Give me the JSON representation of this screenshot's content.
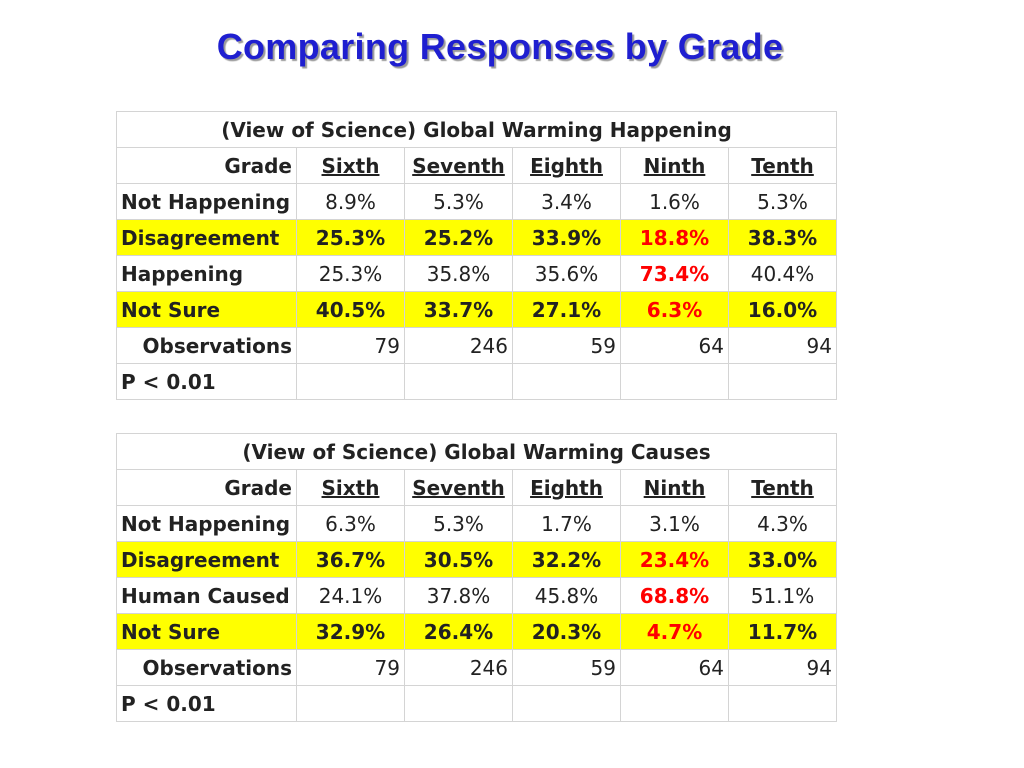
{
  "title": "Comparing Responses by Grade",
  "colors": {
    "title": "#1f1fd0",
    "highlight": "#ffff00",
    "emphasis": "#ff0000"
  },
  "tables": [
    {
      "caption": "(View of Science) Global Warming Happening",
      "grade_label": "Grade",
      "grades": [
        "Sixth",
        "Seventh",
        "Eighth",
        "Ninth",
        "Tenth"
      ],
      "rows": [
        {
          "label": "Not Happening",
          "values": [
            "8.9%",
            "5.3%",
            "3.4%",
            "1.6%",
            "5.3%"
          ]
        },
        {
          "label": "Disagreement",
          "values": [
            "25.3%",
            "25.2%",
            "33.9%",
            "18.8%",
            "38.3%"
          ]
        },
        {
          "label": "Happening",
          "values": [
            "25.3%",
            "35.8%",
            "35.6%",
            "73.4%",
            "40.4%"
          ]
        },
        {
          "label": "Not Sure",
          "values": [
            "40.5%",
            "33.7%",
            "27.1%",
            "6.3%",
            "16.0%"
          ]
        }
      ],
      "observations_label": "Observations",
      "observations": [
        "79",
        "246",
        "59",
        "64",
        "94"
      ],
      "p_value": "P < 0.01"
    },
    {
      "caption": "(View of Science) Global Warming Causes",
      "grade_label": "Grade",
      "grades": [
        "Sixth",
        "Seventh",
        "Eighth",
        "Ninth",
        "Tenth"
      ],
      "rows": [
        {
          "label": "Not Happening",
          "values": [
            "6.3%",
            "5.3%",
            "1.7%",
            "3.1%",
            "4.3%"
          ]
        },
        {
          "label": "Disagreement",
          "values": [
            "36.7%",
            "30.5%",
            "32.2%",
            "23.4%",
            "33.0%"
          ]
        },
        {
          "label": "Human Caused",
          "values": [
            "24.1%",
            "37.8%",
            "45.8%",
            "68.8%",
            "51.1%"
          ]
        },
        {
          "label": "Not Sure",
          "values": [
            "32.9%",
            "26.4%",
            "20.3%",
            "4.7%",
            "11.7%"
          ]
        }
      ],
      "observations_label": "Observations",
      "observations": [
        "79",
        "246",
        "59",
        "64",
        "94"
      ],
      "p_value": "P < 0.01"
    }
  ]
}
